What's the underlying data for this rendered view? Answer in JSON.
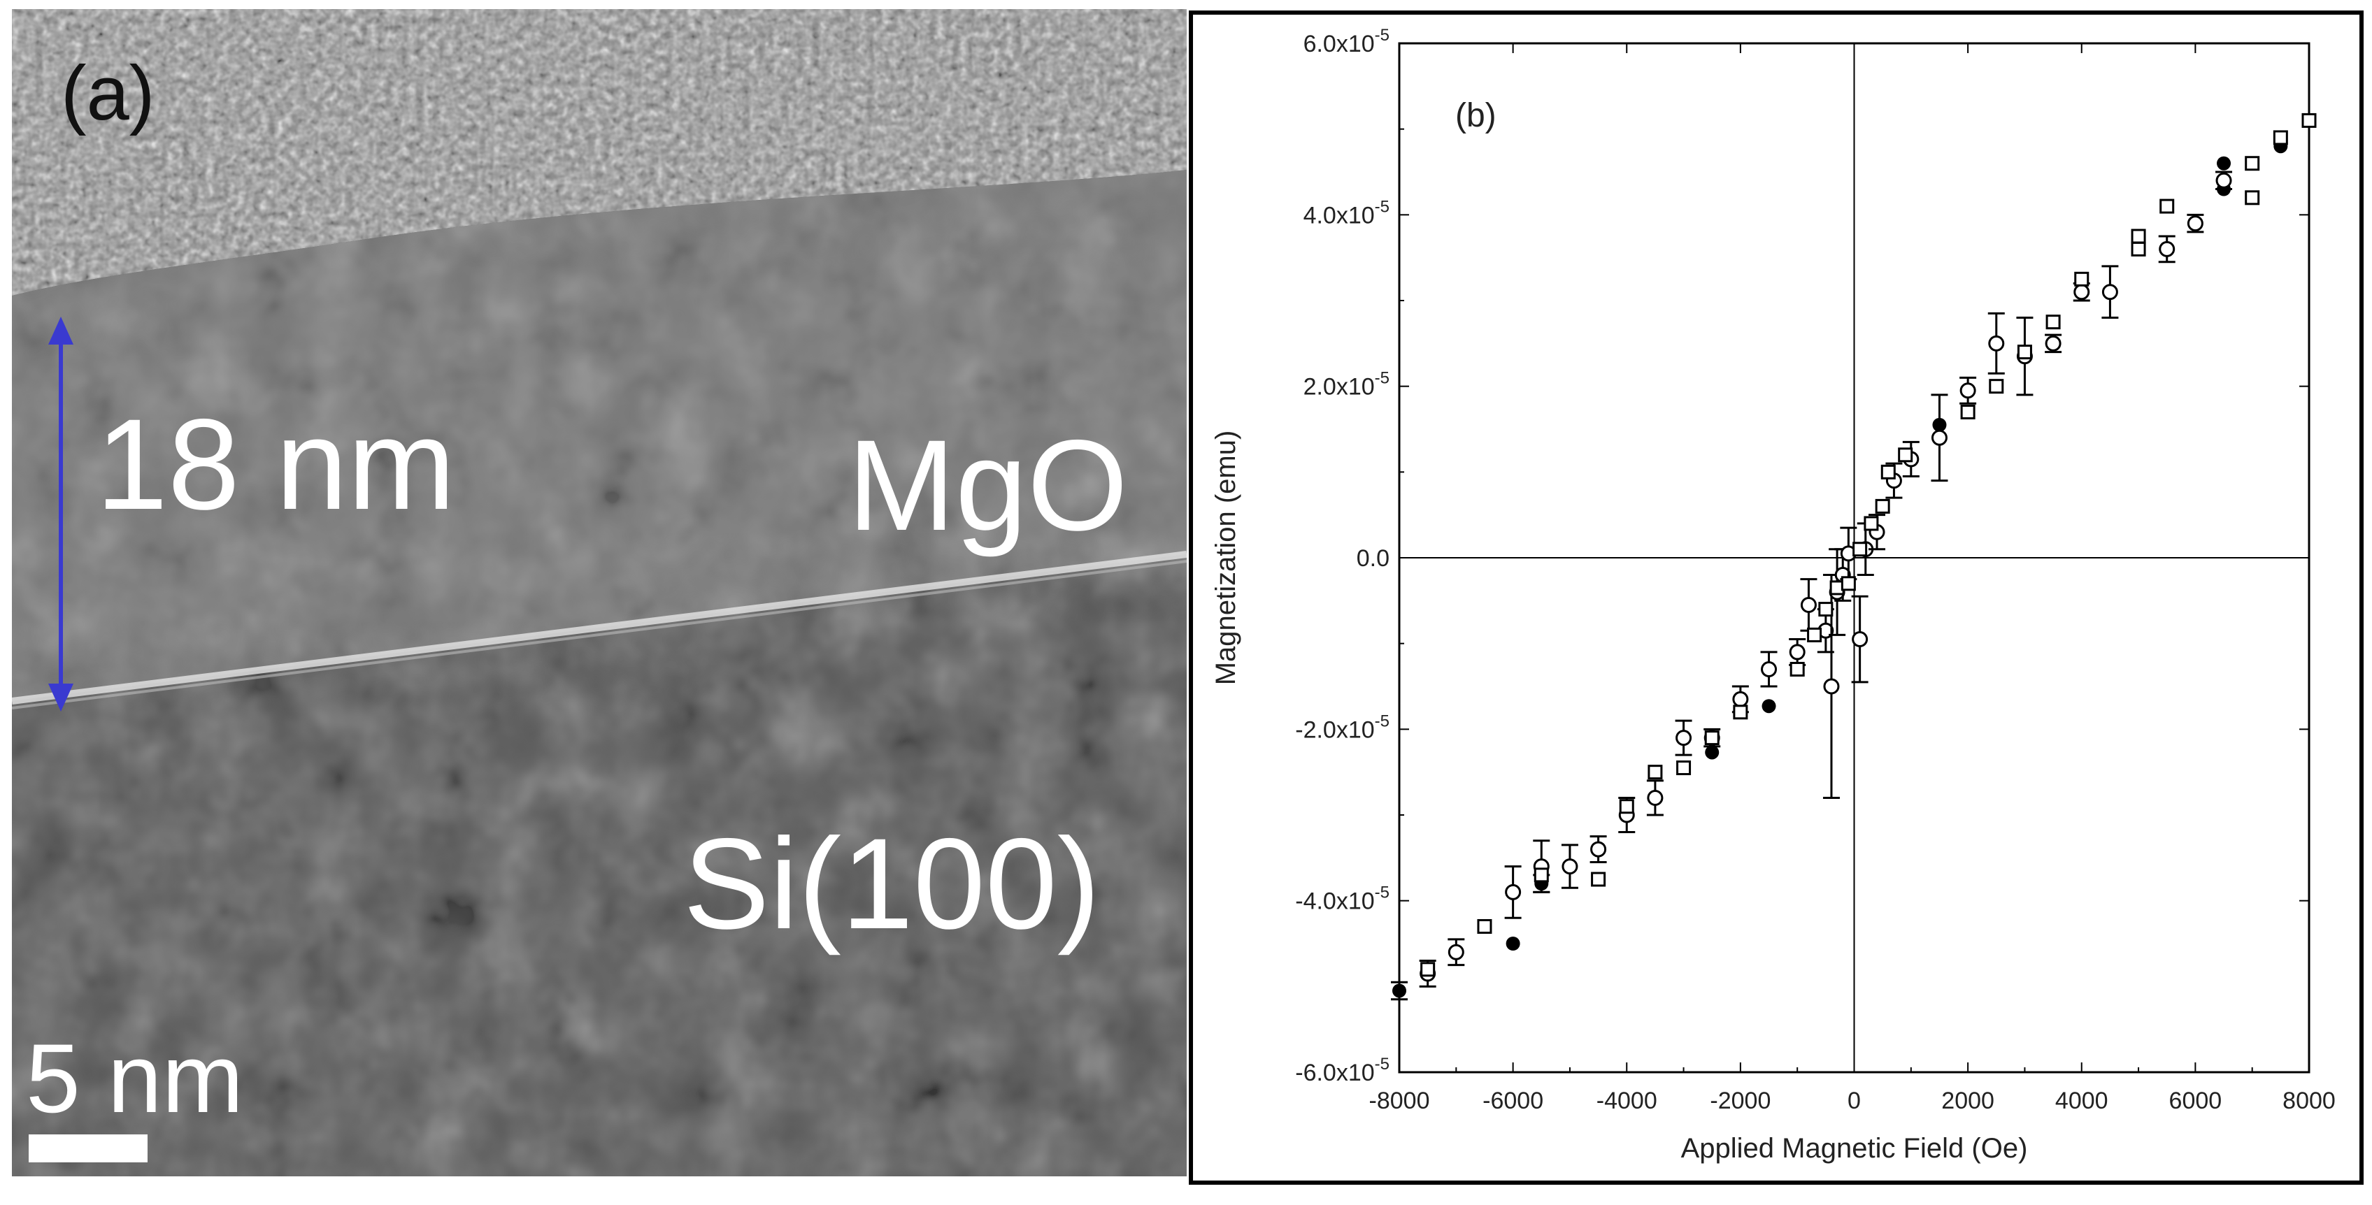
{
  "panel_a": {
    "panel_label": "(a)",
    "thickness_label": "18 nm",
    "layer_top": "MgO",
    "layer_bottom": "Si(100)",
    "scale_bar_label": "5 nm",
    "arrow_color": "#3a3ad0"
  },
  "chart_data": {
    "type": "scatter",
    "panel_label": "(b)",
    "title": "",
    "xlabel": "Applied Magnetic Field (Oe)",
    "ylabel": "Magnetization (emu)",
    "xlim": [
      -8000,
      8000
    ],
    "ylim": [
      -6e-05,
      6e-05
    ],
    "x_ticks": [
      -8000,
      -6000,
      -4000,
      -2000,
      0,
      2000,
      4000,
      6000,
      8000
    ],
    "x_tick_labels": [
      "-8000",
      "-6000",
      "-4000",
      "-2000",
      "0",
      "2000",
      "4000",
      "6000",
      "8000"
    ],
    "y_ticks": [
      -6e-05,
      -4e-05,
      -2e-05,
      0,
      2e-05,
      4e-05,
      6e-05
    ],
    "y_tick_labels": [
      {
        "mant": "-6.0x10",
        "exp": "-5"
      },
      {
        "mant": "-4.0x10",
        "exp": "-5"
      },
      {
        "mant": "-2.0x10",
        "exp": "-5"
      },
      {
        "mant": "0.0",
        "exp": ""
      },
      {
        "mant": "2.0x10",
        "exp": "-5"
      },
      {
        "mant": "4.0x10",
        "exp": "-5"
      },
      {
        "mant": "6.0x10",
        "exp": "-5"
      }
    ],
    "zero_lines": true,
    "series": [
      {
        "name": "filled circles",
        "marker": "filled-circle",
        "points": [
          {
            "x": -8000,
            "y": -5.05e-05,
            "err": 1e-06
          },
          {
            "x": -5500,
            "y": -3.8e-05,
            "err": 1e-06
          },
          {
            "x": -6000,
            "y": -4.5e-05,
            "err": 0
          },
          {
            "x": -2500,
            "y": -2.27e-05,
            "err": 0
          },
          {
            "x": -1500,
            "y": -1.73e-05,
            "err": 0
          },
          {
            "x": 1500,
            "y": 1.55e-05,
            "err": 0
          },
          {
            "x": 6500,
            "y": 4.3e-05,
            "err": 0
          },
          {
            "x": 7500,
            "y": 4.8e-05,
            "err": 0
          },
          {
            "x": 8000,
            "y": 5.1e-05,
            "err": 0
          },
          {
            "x": 6500,
            "y": 4.6e-05,
            "err": 0
          }
        ]
      },
      {
        "name": "open circles",
        "marker": "open-circle",
        "points": [
          {
            "x": -7500,
            "y": -4.85e-05,
            "err": 1.5e-06
          },
          {
            "x": -7000,
            "y": -4.6e-05,
            "err": 1.5e-06
          },
          {
            "x": -6000,
            "y": -3.9e-05,
            "err": 3e-06
          },
          {
            "x": -5500,
            "y": -3.6e-05,
            "err": 3e-06
          },
          {
            "x": -5000,
            "y": -3.6e-05,
            "err": 2.5e-06
          },
          {
            "x": -4500,
            "y": -3.4e-05,
            "err": 1.5e-06
          },
          {
            "x": -4000,
            "y": -3e-05,
            "err": 2e-06
          },
          {
            "x": -3500,
            "y": -2.8e-05,
            "err": 2e-06
          },
          {
            "x": -3000,
            "y": -2.1e-05,
            "err": 2e-06
          },
          {
            "x": -2500,
            "y": -2.1e-05,
            "err": 1e-06
          },
          {
            "x": -2000,
            "y": -1.65e-05,
            "err": 1.5e-06
          },
          {
            "x": -1500,
            "y": -1.3e-05,
            "err": 2e-06
          },
          {
            "x": -1000,
            "y": -1.1e-05,
            "err": 1.5e-06
          },
          {
            "x": -800,
            "y": -5.5e-06,
            "err": 3e-06
          },
          {
            "x": -500,
            "y": -8.5e-06,
            "err": 2.5e-06
          },
          {
            "x": -400,
            "y": -1.5e-05,
            "err": 1.3e-05
          },
          {
            "x": -300,
            "y": -4e-06,
            "err": 5e-06
          },
          {
            "x": -200,
            "y": -2e-06,
            "err": 3e-06
          },
          {
            "x": -100,
            "y": 5e-07,
            "err": 3e-06
          },
          {
            "x": 100,
            "y": -9.5e-06,
            "err": 5e-06
          },
          {
            "x": 200,
            "y": 1e-06,
            "err": 3e-06
          },
          {
            "x": 400,
            "y": 3e-06,
            "err": 2e-06
          },
          {
            "x": 700,
            "y": 9e-06,
            "err": 2e-06
          },
          {
            "x": 1000,
            "y": 1.15e-05,
            "err": 2e-06
          },
          {
            "x": 1500,
            "y": 1.4e-05,
            "err": 5e-06
          },
          {
            "x": 2000,
            "y": 1.95e-05,
            "err": 1.5e-06
          },
          {
            "x": 2500,
            "y": 2.5e-05,
            "err": 3.5e-06
          },
          {
            "x": 3000,
            "y": 2.35e-05,
            "err": 4.5e-06
          },
          {
            "x": 3500,
            "y": 2.5e-05,
            "err": 1e-06
          },
          {
            "x": 4000,
            "y": 3.1e-05,
            "err": 1e-06
          },
          {
            "x": 4500,
            "y": 3.1e-05,
            "err": 3e-06
          },
          {
            "x": 5500,
            "y": 3.6e-05,
            "err": 1.5e-06
          },
          {
            "x": 6000,
            "y": 3.9e-05,
            "err": 1e-06
          },
          {
            "x": 6500,
            "y": 4.4e-05,
            "err": 1e-06
          }
        ]
      },
      {
        "name": "open squares",
        "marker": "open-square",
        "points": [
          {
            "x": -7500,
            "y": -4.8e-05,
            "err": 0
          },
          {
            "x": -6500,
            "y": -4.3e-05,
            "err": 0
          },
          {
            "x": -5500,
            "y": -3.7e-05,
            "err": 0
          },
          {
            "x": -4500,
            "y": -3.75e-05,
            "err": 0
          },
          {
            "x": -4000,
            "y": -2.9e-05,
            "err": 0
          },
          {
            "x": -3500,
            "y": -2.5e-05,
            "err": 0
          },
          {
            "x": -3000,
            "y": -2.45e-05,
            "err": 0
          },
          {
            "x": -2500,
            "y": -2.1e-05,
            "err": 0
          },
          {
            "x": -2000,
            "y": -1.8e-05,
            "err": 0
          },
          {
            "x": -1000,
            "y": -1.3e-05,
            "err": 0
          },
          {
            "x": -700,
            "y": -9e-06,
            "err": 0
          },
          {
            "x": -500,
            "y": -6e-06,
            "err": 0
          },
          {
            "x": -300,
            "y": -3.5e-06,
            "err": 0
          },
          {
            "x": -100,
            "y": -3e-06,
            "err": 0
          },
          {
            "x": 100,
            "y": 1e-06,
            "err": 0
          },
          {
            "x": 300,
            "y": 4e-06,
            "err": 0
          },
          {
            "x": 500,
            "y": 6e-06,
            "err": 0
          },
          {
            "x": 600,
            "y": 1e-05,
            "err": 0
          },
          {
            "x": 900,
            "y": 1.2e-05,
            "err": 0
          },
          {
            "x": 2000,
            "y": 1.7e-05,
            "err": 0
          },
          {
            "x": 2500,
            "y": 2e-05,
            "err": 0
          },
          {
            "x": 3000,
            "y": 2.4e-05,
            "err": 0
          },
          {
            "x": 3500,
            "y": 2.75e-05,
            "err": 0
          },
          {
            "x": 4000,
            "y": 3.25e-05,
            "err": 0
          },
          {
            "x": 5000,
            "y": 3.75e-05,
            "err": 0
          },
          {
            "x": 5500,
            "y": 4.1e-05,
            "err": 0
          },
          {
            "x": 7000,
            "y": 4.6e-05,
            "err": 0
          },
          {
            "x": 7000,
            "y": 4.2e-05,
            "err": 0
          },
          {
            "x": 7500,
            "y": 4.9e-05,
            "err": 0
          },
          {
            "x": 8000,
            "y": 5.1e-05,
            "err": 0
          },
          {
            "x": 5000,
            "y": 3.6e-05,
            "err": 0
          }
        ]
      }
    ]
  }
}
